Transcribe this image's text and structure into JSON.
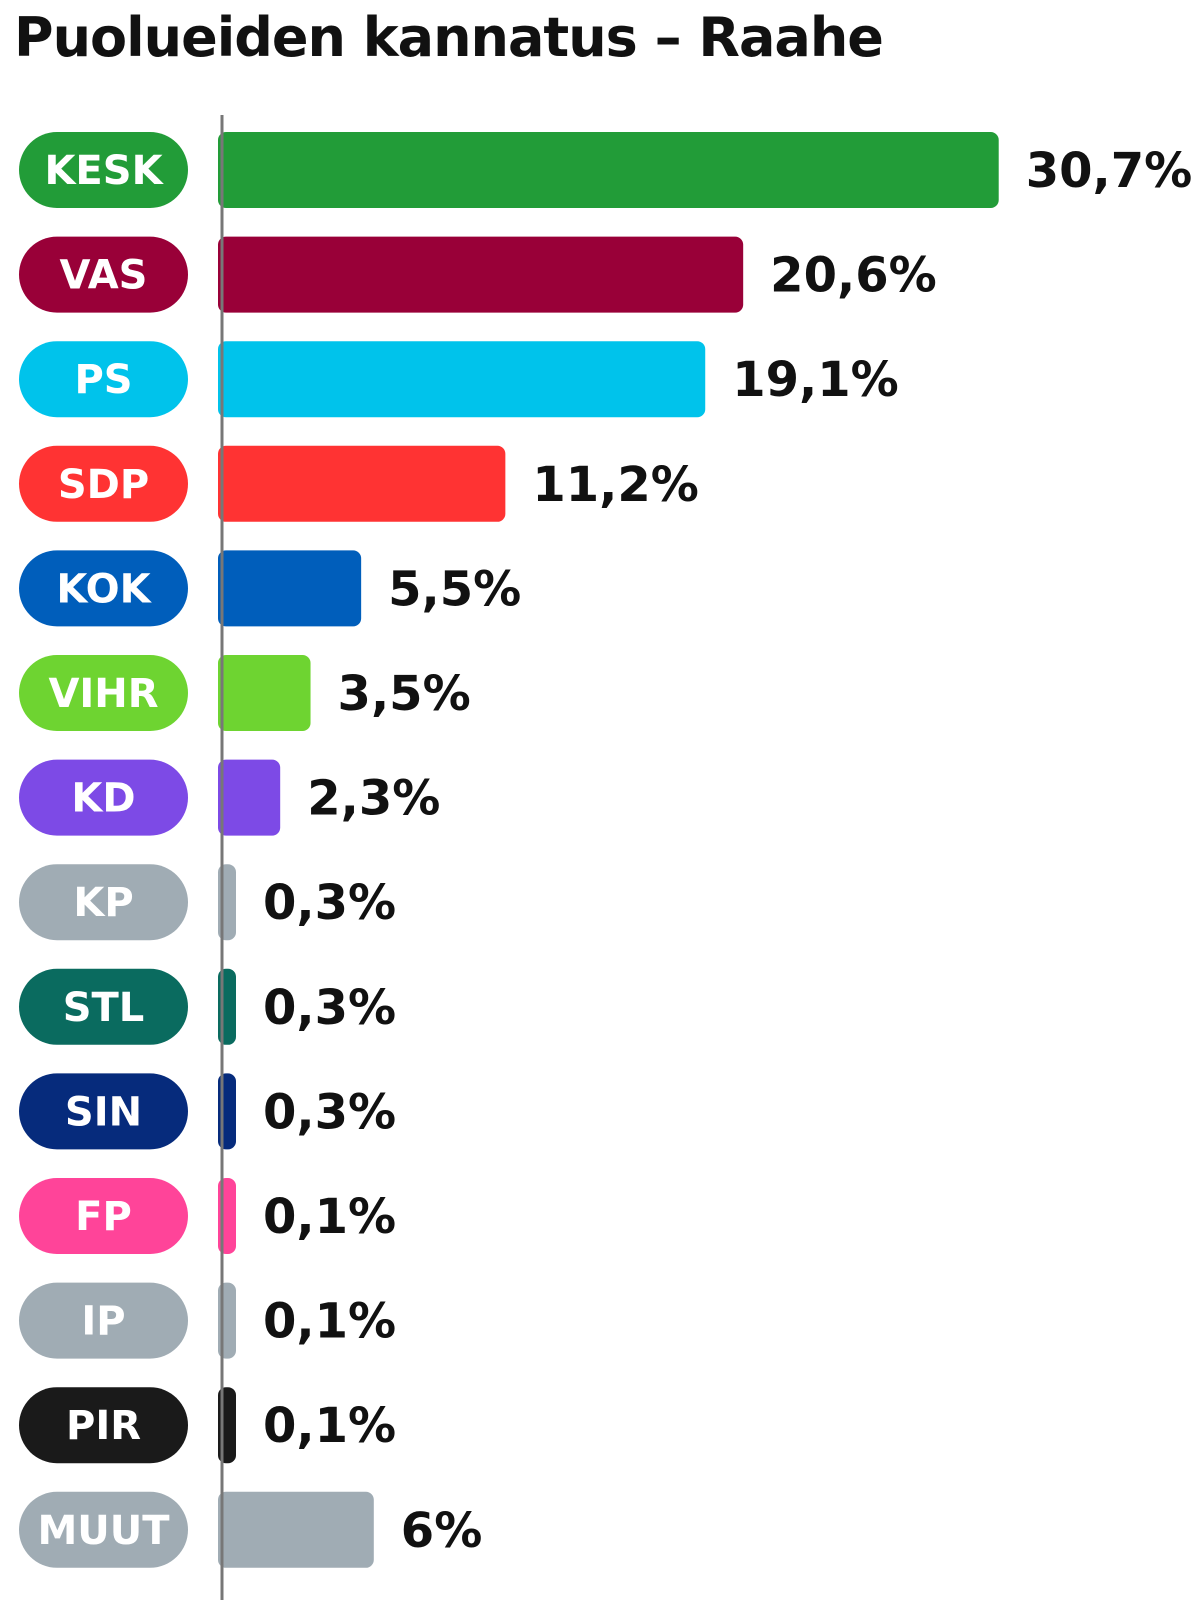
{
  "title": "Puolueiden kannatus – Raahe",
  "chart_data": {
    "type": "bar",
    "orientation": "horizontal",
    "title": "Puolueiden kannatus – Raahe",
    "categories": [
      "KESK",
      "VAS",
      "PS",
      "SDP",
      "KOK",
      "VIHR",
      "KD",
      "KP",
      "STL",
      "SIN",
      "FP",
      "IP",
      "PIR",
      "MUUT"
    ],
    "values": [
      30.7,
      20.6,
      19.1,
      11.2,
      5.5,
      3.5,
      2.3,
      0.3,
      0.3,
      0.3,
      0.1,
      0.1,
      0.1,
      6
    ],
    "value_labels": [
      "30,7%",
      "20,6%",
      "19,1%",
      "11,2%",
      "5,5%",
      "3,5%",
      "2,3%",
      "0,3%",
      "0,3%",
      "0,3%",
      "0,1%",
      "0,1%",
      "0,1%",
      "6%"
    ],
    "colors": [
      "#229c38",
      "#990038",
      "#00c3eb",
      "#ff3333",
      "#005ebb",
      "#6ed431",
      "#7d4ae6",
      "#a0acb4",
      "#0a6b5f",
      "#062b7c",
      "#ff4499",
      "#a0acb4",
      "#1a1a1a",
      "#a0acb4"
    ],
    "xlabel": "",
    "ylabel": "",
    "grid": false,
    "legend": "none"
  }
}
